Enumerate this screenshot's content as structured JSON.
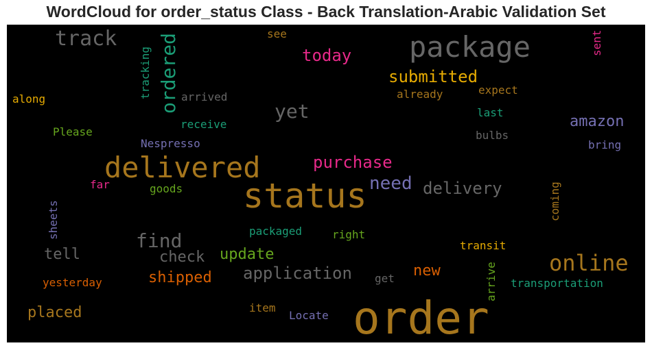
{
  "chart_data": {
    "type": "wordcloud",
    "title": "WordCloud for order_status Class - Back Translation-Arabic Validation Set",
    "background_color": "#000000",
    "words": [
      {
        "text": "order",
        "color": "#a6761d"
      },
      {
        "text": "status",
        "color": "#a6761d"
      },
      {
        "text": "delivered",
        "color": "#a6761d"
      },
      {
        "text": "package",
        "color": "#666666"
      },
      {
        "text": "online",
        "color": "#a6761d"
      },
      {
        "text": "track",
        "color": "#666666"
      },
      {
        "text": "ordered",
        "color": "#1b9e77"
      },
      {
        "text": "find",
        "color": "#666666"
      },
      {
        "text": "yet",
        "color": "#666666"
      },
      {
        "text": "need",
        "color": "#7570b3"
      },
      {
        "text": "delivery",
        "color": "#666666"
      },
      {
        "text": "application",
        "color": "#666666"
      },
      {
        "text": "purchase",
        "color": "#e7298a"
      },
      {
        "text": "submitted",
        "color": "#e6ab02"
      },
      {
        "text": "today",
        "color": "#e7298a"
      },
      {
        "text": "amazon",
        "color": "#7570b3"
      },
      {
        "text": "update",
        "color": "#66a61e"
      },
      {
        "text": "check",
        "color": "#666666"
      },
      {
        "text": "shipped",
        "color": "#d95f02"
      },
      {
        "text": "tell",
        "color": "#666666"
      },
      {
        "text": "placed",
        "color": "#a6761d"
      },
      {
        "text": "new",
        "color": "#d95f02"
      },
      {
        "text": "tracking",
        "color": "#1b9e77"
      },
      {
        "text": "arrived",
        "color": "#666666"
      },
      {
        "text": "receive",
        "color": "#1b9e77"
      },
      {
        "text": "Please",
        "color": "#66a61e"
      },
      {
        "text": "along",
        "color": "#e6ab02"
      },
      {
        "text": "Nespresso",
        "color": "#7570b3"
      },
      {
        "text": "goods",
        "color": "#66a61e"
      },
      {
        "text": "far",
        "color": "#e7298a"
      },
      {
        "text": "sheets",
        "color": "#7570b3"
      },
      {
        "text": "yesterday",
        "color": "#d95f02"
      },
      {
        "text": "packaged",
        "color": "#1b9e77"
      },
      {
        "text": "right",
        "color": "#66a61e"
      },
      {
        "text": "item",
        "color": "#a6761d"
      },
      {
        "text": "Locate",
        "color": "#7570b3"
      },
      {
        "text": "get",
        "color": "#666666"
      },
      {
        "text": "transit",
        "color": "#e6ab02"
      },
      {
        "text": "arrive",
        "color": "#66a61e"
      },
      {
        "text": "transportation",
        "color": "#1b9e77"
      },
      {
        "text": "coming",
        "color": "#a6761d"
      },
      {
        "text": "bring",
        "color": "#7570b3"
      },
      {
        "text": "bulbs",
        "color": "#666666"
      },
      {
        "text": "last",
        "color": "#1b9e77"
      },
      {
        "text": "expect",
        "color": "#a6761d"
      },
      {
        "text": "already",
        "color": "#a6761d"
      },
      {
        "text": "see",
        "color": "#a6761d"
      },
      {
        "text": "sent",
        "color": "#e7298a"
      }
    ]
  }
}
